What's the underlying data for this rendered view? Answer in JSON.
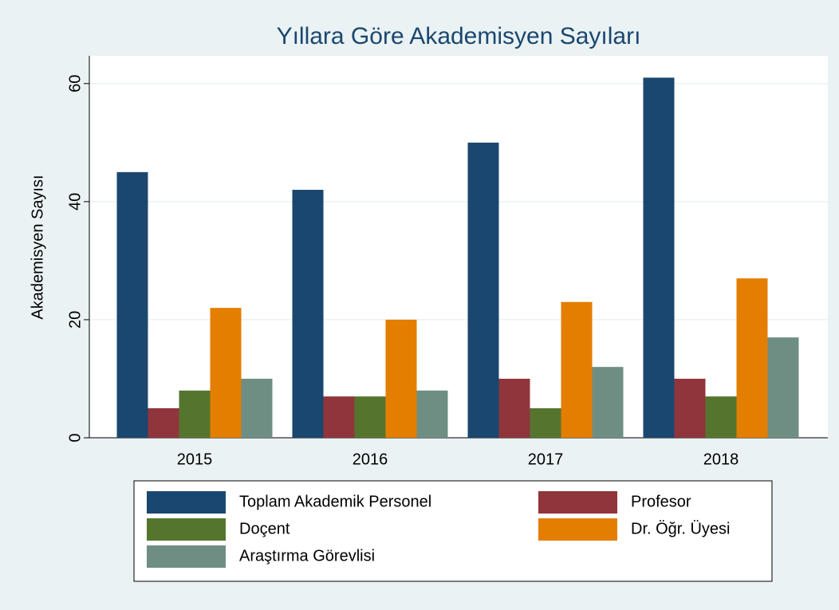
{
  "chart_data": {
    "type": "bar",
    "title": "Yıllara Göre Akademisyen Sayıları",
    "y_label": "Akademisyen Sayısı",
    "categories": [
      "2015",
      "2016",
      "2017",
      "2018"
    ],
    "series": [
      {
        "name": "Toplam Akademik Personel",
        "color": "#1a476f",
        "values": [
          45,
          42,
          50,
          61
        ]
      },
      {
        "name": "Profesor",
        "color": "#90353b",
        "values": [
          5,
          7,
          10,
          10
        ]
      },
      {
        "name": "Doçent",
        "color": "#55752f",
        "values": [
          8,
          7,
          5,
          7
        ]
      },
      {
        "name": "Dr. Öğr. Üyesi",
        "color": "#e37e00",
        "values": [
          22,
          20,
          23,
          27
        ]
      },
      {
        "name": "Araştırma Görevlisi",
        "color": "#6e8e84",
        "values": [
          10,
          8,
          12,
          17
        ]
      }
    ],
    "ylim": [
      0,
      64.7
    ],
    "yticks": [
      0,
      20,
      40,
      60
    ],
    "grid": true
  }
}
